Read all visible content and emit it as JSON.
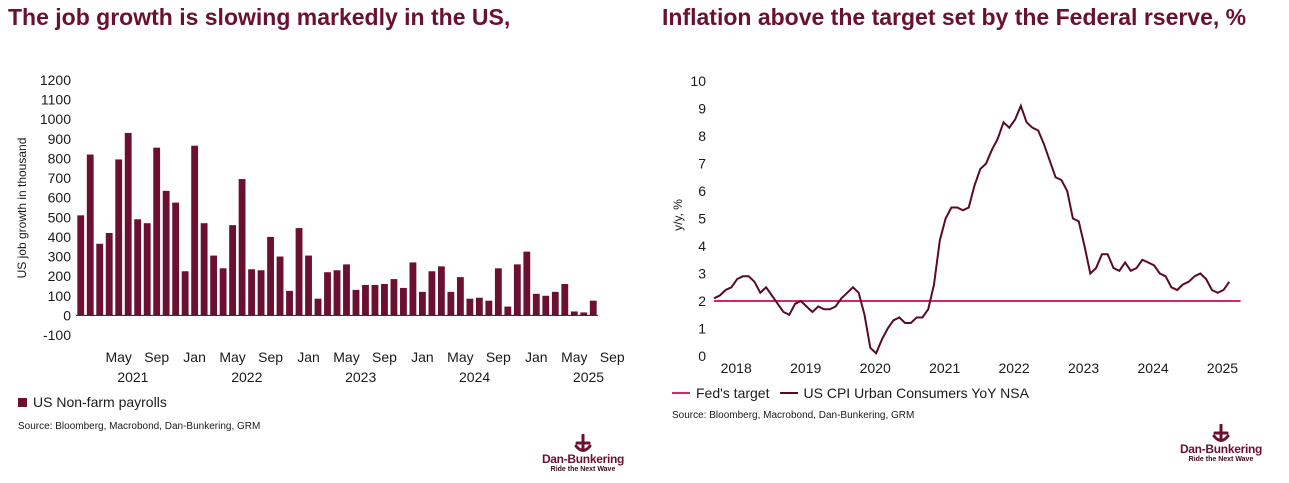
{
  "left_chart": {
    "title": "The job growth is slowing markedly in the US,",
    "ylabel": "US job growth in thousand",
    "legend_label": "US Non-farm payrolls",
    "source": "Source: Bloomberg, Macrobond, Dan-Bunkering, GRM",
    "color": "#6b1030"
  },
  "right_chart": {
    "title": "Inflation above the target set by the Federal rserve, %",
    "ylabel": "y/y, %",
    "legend_target": "Fed's target",
    "legend_cpi": "US CPI Urban Consumers YoY NSA",
    "source": "Source: Bloomberg, Macrobond, Dan-Bunkering, GRM",
    "target_color": "#d6246e",
    "cpi_color": "#5a0a26"
  },
  "logo": {
    "name": "Dan-Bunkering",
    "tagline": "Ride the Next Wave"
  },
  "chart_data": [
    {
      "type": "bar",
      "title": "The job growth is slowing markedly in the US,",
      "ylabel": "US job growth in thousand",
      "xlabel": "",
      "ylim": [
        -100,
        1200
      ],
      "yticks": [
        -100,
        0,
        100,
        200,
        300,
        400,
        500,
        600,
        700,
        800,
        900,
        1000,
        1100,
        1200
      ],
      "x_month_ticks": [
        "May",
        "Sep",
        "Jan",
        "May",
        "Sep",
        "Jan",
        "May",
        "Sep",
        "Jan",
        "May",
        "Sep",
        "Jan",
        "May",
        "Sep"
      ],
      "x_year_ticks": [
        "2021",
        "2022",
        "2023",
        "2024",
        "2025"
      ],
      "series": [
        {
          "name": "US Non-farm payrolls",
          "categories": [
            "2021-01",
            "2021-02",
            "2021-03",
            "2021-04",
            "2021-05",
            "2021-06",
            "2021-07",
            "2021-08",
            "2021-09",
            "2021-10",
            "2021-11",
            "2021-12",
            "2022-01",
            "2022-02",
            "2022-03",
            "2022-04",
            "2022-05",
            "2022-06",
            "2022-07",
            "2022-08",
            "2022-09",
            "2022-10",
            "2022-11",
            "2022-12",
            "2023-01",
            "2023-02",
            "2023-03",
            "2023-04",
            "2023-05",
            "2023-06",
            "2023-07",
            "2023-08",
            "2023-09",
            "2023-10",
            "2023-11",
            "2023-12",
            "2024-01",
            "2024-02",
            "2024-03",
            "2024-04",
            "2024-05",
            "2024-06",
            "2024-07",
            "2024-08",
            "2024-09",
            "2024-10",
            "2024-11",
            "2024-12",
            "2025-01",
            "2025-02",
            "2025-03",
            "2025-04",
            "2025-05",
            "2025-06",
            "2025-07"
          ],
          "values": [
            510,
            820,
            365,
            420,
            795,
            930,
            490,
            470,
            855,
            635,
            575,
            225,
            865,
            470,
            305,
            240,
            460,
            695,
            235,
            230,
            400,
            300,
            125,
            445,
            305,
            85,
            220,
            230,
            260,
            130,
            155,
            155,
            160,
            185,
            140,
            270,
            120,
            225,
            250,
            120,
            195,
            85,
            90,
            75,
            240,
            45,
            260,
            325,
            110,
            100,
            120,
            160,
            20,
            15,
            75
          ]
        }
      ]
    },
    {
      "type": "line",
      "title": "Inflation above the target set by the Federal rserve, %",
      "ylabel": "y/y, %",
      "ylim": [
        0,
        10
      ],
      "yticks": [
        0,
        1,
        2,
        3,
        4,
        5,
        6,
        7,
        8,
        9,
        10
      ],
      "x_year_ticks": [
        "2018",
        "2019",
        "2020",
        "2021",
        "2022",
        "2023",
        "2024",
        "2025"
      ],
      "x_start": 2018.0,
      "x_step_months": 1,
      "series": [
        {
          "name": "Fed's target",
          "values": [
            2,
            2
          ],
          "x": [
            2018.0,
            2025.58
          ]
        },
        {
          "name": "US CPI Urban Consumers YoY NSA",
          "values": [
            2.1,
            2.2,
            2.4,
            2.5,
            2.8,
            2.9,
            2.9,
            2.7,
            2.3,
            2.5,
            2.2,
            1.9,
            1.6,
            1.5,
            1.9,
            2.0,
            1.8,
            1.6,
            1.8,
            1.7,
            1.7,
            1.8,
            2.1,
            2.3,
            2.5,
            2.3,
            1.5,
            0.3,
            0.1,
            0.6,
            1.0,
            1.3,
            1.4,
            1.2,
            1.2,
            1.4,
            1.4,
            1.7,
            2.6,
            4.2,
            5.0,
            5.4,
            5.4,
            5.3,
            5.4,
            6.2,
            6.8,
            7.0,
            7.5,
            7.9,
            8.5,
            8.3,
            8.6,
            9.1,
            8.5,
            8.3,
            8.2,
            7.7,
            7.1,
            6.5,
            6.4,
            6.0,
            5.0,
            4.9,
            4.0,
            3.0,
            3.2,
            3.7,
            3.7,
            3.2,
            3.1,
            3.4,
            3.1,
            3.2,
            3.5,
            3.4,
            3.3,
            3.0,
            2.9,
            2.5,
            2.4,
            2.6,
            2.7,
            2.9,
            3.0,
            2.8,
            2.4,
            2.3,
            2.4,
            2.7
          ]
        }
      ]
    }
  ]
}
